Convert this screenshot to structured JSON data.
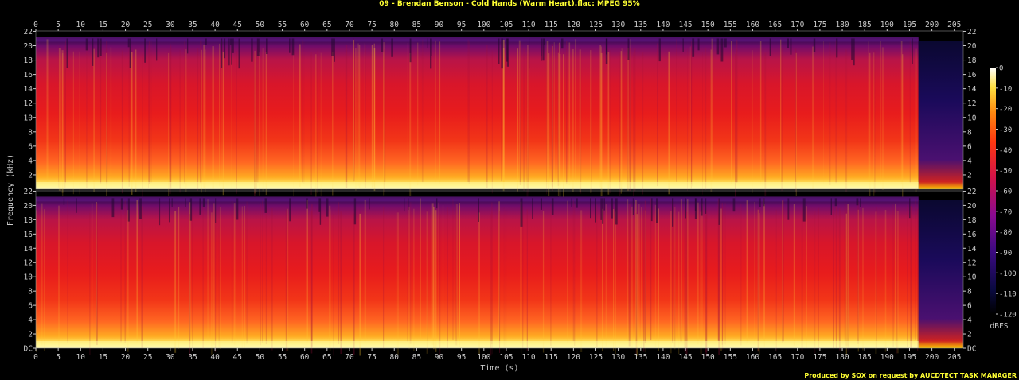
{
  "title": "09 - Brendan Benson - Cold Hands (Warm Heart).flac: MPEG 95%",
  "credit": "Produced by SOX on request by AUCDTECT TASK MANAGER",
  "colors": {
    "text": "#ffff33",
    "axis": "#cccccc",
    "background": "#000000"
  },
  "chart_data": {
    "type": "heatmap",
    "subtype": "spectrogram",
    "title": "09 - Brendan Benson - Cold Hands (Warm Heart).flac: MPEG 95%",
    "xlabel": "Time (s)",
    "ylabel": "Frequency (kHz)",
    "xlim": [
      0,
      207
    ],
    "ylim": [
      0,
      22.05
    ],
    "x_ticks": [
      "0",
      "5",
      "10",
      "15",
      "20",
      "25",
      "30",
      "35",
      "40",
      "45",
      "50",
      "55",
      "60",
      "65",
      "70",
      "75",
      "80",
      "85",
      "90",
      "95",
      "100",
      "105",
      "110",
      "115",
      "120",
      "125",
      "130",
      "135",
      "140",
      "145",
      "150",
      "155",
      "160",
      "165",
      "170",
      "175",
      "180",
      "185",
      "190",
      "195",
      "200",
      "205"
    ],
    "y_ticks_top": [
      "22",
      "20",
      "18",
      "16",
      "14",
      "12",
      "10",
      "8",
      "6",
      "4",
      "2"
    ],
    "y_ticks_bottom": [
      "22",
      "20",
      "18",
      "16",
      "14",
      "12",
      "10",
      "8",
      "6",
      "4",
      "2",
      "DC"
    ],
    "channels": [
      "channel 1",
      "channel 2"
    ],
    "music_end_s": 197,
    "spectrum_cutoff_khz": 21,
    "colorbar": {
      "label": "dBFS",
      "range": [
        -120,
        0
      ],
      "ticks": [
        "0",
        "-10",
        "-20",
        "-30",
        "-40",
        "-50",
        "-60",
        "-70",
        "-80",
        "-90",
        "-100",
        "-110",
        "-120"
      ]
    }
  }
}
